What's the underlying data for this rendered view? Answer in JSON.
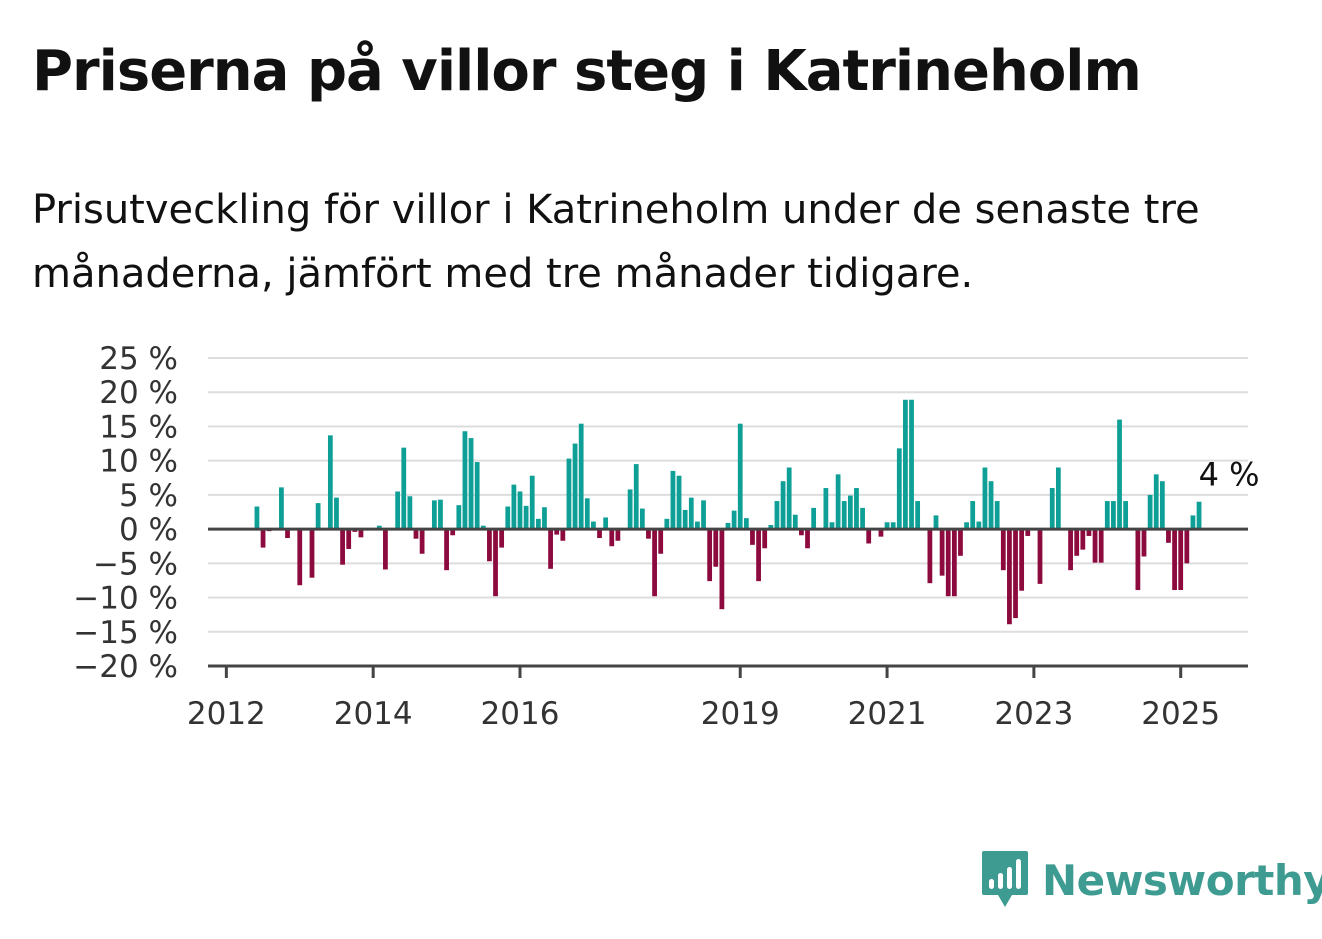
{
  "title": "Priserna på villor steg i Katrineholm",
  "subtitle": "Prisutveckling för villor i Katrineholm under de senaste tre månaderna, jämfört med tre månader tidigare.",
  "brand": {
    "name": "Newsworthy",
    "icon": "newsworthy-logo-icon",
    "color": "#3e9b91"
  },
  "colors": {
    "positive": "#0e9f96",
    "negative": "#8c0a3e",
    "grid": "#dddddd",
    "axis": "#444444"
  },
  "chart_data": {
    "type": "bar",
    "title": "",
    "xlabel": "",
    "ylabel": "",
    "ylim": [
      -20,
      25
    ],
    "y_ticks": [
      {
        "value": 25,
        "label": "25 %"
      },
      {
        "value": 20,
        "label": "20 %"
      },
      {
        "value": 15,
        "label": "15 %"
      },
      {
        "value": 10,
        "label": "10 %"
      },
      {
        "value": 5,
        "label": "5 %"
      },
      {
        "value": 0,
        "label": "0 %"
      },
      {
        "value": -5,
        "label": "−5 %"
      },
      {
        "value": -10,
        "label": "−10 %"
      },
      {
        "value": -15,
        "label": "−15 %"
      },
      {
        "value": -20,
        "label": "−20 %"
      }
    ],
    "x_domain": [
      "2011-10",
      "2025-12"
    ],
    "x_ticks": [
      "2012",
      "2014",
      "2016",
      "2019",
      "2021",
      "2023",
      "2025"
    ],
    "grid": true,
    "annotation": {
      "text": "4 %",
      "x": "2025-04"
    },
    "series": [
      {
        "x": [
          "2012-06",
          "2012-07",
          "2012-08",
          "2012-09",
          "2012-10",
          "2012-11",
          "2012-12",
          "2013-01",
          "2013-02",
          "2013-03",
          "2013-04",
          "2013-05",
          "2013-06",
          "2013-07",
          "2013-08",
          "2013-09",
          "2013-10",
          "2013-11",
          "2013-12",
          "2014-01",
          "2014-02",
          "2014-03",
          "2014-04",
          "2014-05",
          "2014-06",
          "2014-07",
          "2014-08",
          "2014-09",
          "2014-10",
          "2014-11",
          "2014-12",
          "2015-01",
          "2015-02",
          "2015-03",
          "2015-04",
          "2015-05",
          "2015-06",
          "2015-07",
          "2015-08",
          "2015-09",
          "2015-10",
          "2015-11",
          "2015-12",
          "2016-01",
          "2016-02",
          "2016-03",
          "2016-04",
          "2016-05",
          "2016-06",
          "2016-07",
          "2016-08",
          "2016-09",
          "2016-10",
          "2016-11",
          "2016-12",
          "2017-01",
          "2017-02",
          "2017-03",
          "2017-04",
          "2017-05",
          "2017-06",
          "2017-07",
          "2017-08",
          "2017-09",
          "2017-10",
          "2017-11",
          "2017-12",
          "2018-01",
          "2018-02",
          "2018-03",
          "2018-04",
          "2018-05",
          "2018-06",
          "2018-07",
          "2018-08",
          "2018-09",
          "2018-10",
          "2018-11",
          "2018-12",
          "2019-01",
          "2019-02",
          "2019-03",
          "2019-04",
          "2019-05",
          "2019-06",
          "2019-07",
          "2019-08",
          "2019-09",
          "2019-10",
          "2019-11",
          "2019-12",
          "2020-01",
          "2020-02",
          "2020-03",
          "2020-04",
          "2020-05",
          "2020-06",
          "2020-07",
          "2020-08",
          "2020-09",
          "2020-10",
          "2020-11",
          "2020-12",
          "2021-01",
          "2021-02",
          "2021-03",
          "2021-04",
          "2021-05",
          "2021-06",
          "2021-07",
          "2021-08",
          "2021-09",
          "2021-10",
          "2021-11",
          "2021-12",
          "2022-01",
          "2022-02",
          "2022-03",
          "2022-04",
          "2022-05",
          "2022-06",
          "2022-07",
          "2022-08",
          "2022-09",
          "2022-10",
          "2022-11",
          "2022-12",
          "2023-01",
          "2023-02",
          "2023-03",
          "2023-04",
          "2023-05",
          "2023-06",
          "2023-07",
          "2023-08",
          "2023-09",
          "2023-10",
          "2023-11",
          "2023-12",
          "2024-01",
          "2024-02",
          "2024-03",
          "2024-04",
          "2024-05",
          "2024-06",
          "2024-07",
          "2024-08",
          "2024-09",
          "2024-10",
          "2024-11",
          "2024-12",
          "2025-01",
          "2025-02",
          "2025-03",
          "2025-04"
        ],
        "values": [
          3.3,
          -2.7,
          -0.3,
          -0.2,
          6.1,
          -1.3,
          -0.1,
          -8.2,
          -0.2,
          -7.1,
          3.8,
          -0.2,
          13.7,
          4.6,
          -5.2,
          -2.9,
          -0.4,
          -1.2,
          -0.1,
          0,
          0.5,
          -5.9,
          -0.2,
          5.5,
          11.9,
          4.8,
          -1.4,
          -3.6,
          -0.1,
          4.2,
          4.3,
          -6.0,
          -0.9,
          3.5,
          14.3,
          13.3,
          9.8,
          0.5,
          -4.7,
          -9.8,
          -2.7,
          3.3,
          6.5,
          5.5,
          3.4,
          7.8,
          1.5,
          3.2,
          -5.8,
          -0.8,
          -1.7,
          10.3,
          12.5,
          15.4,
          4.5,
          1.1,
          -1.3,
          1.7,
          -2.5,
          -1.7,
          -0.1,
          5.8,
          9.5,
          3.0,
          -1.4,
          -9.8,
          -3.6,
          1.5,
          8.5,
          7.8,
          2.8,
          4.6,
          1.1,
          4.2,
          -7.6,
          -5.5,
          -11.7,
          0.9,
          2.7,
          15.4,
          1.6,
          -2.3,
          -7.6,
          -2.8,
          0.6,
          4.1,
          7.0,
          9.0,
          2.1,
          -0.9,
          -2.8,
          3.1,
          -0.1,
          6.0,
          1.0,
          8.0,
          4.1,
          4.9,
          6.0,
          3.1,
          -2.1,
          -0.1,
          -1.1,
          1.0,
          1.0,
          11.8,
          18.9,
          18.9,
          4.1,
          0,
          -7.9,
          2.0,
          -6.8,
          -9.8,
          -9.8,
          -3.9,
          1.0,
          4.1,
          1.1,
          9.0,
          7.0,
          4.1,
          -6.0,
          -13.9,
          -13.0,
          -9.0,
          -1.0,
          0,
          -8.0,
          0,
          6.0,
          9.0,
          0,
          -6.0,
          -3.9,
          -3.0,
          -1.0,
          -4.9,
          -4.9,
          4.1,
          4.1,
          16.0,
          4.1,
          0,
          -8.9,
          -4.0,
          5.0,
          8.0,
          7.0,
          -2.0,
          -8.9,
          -8.9,
          -5.0,
          2.0,
          4.0
        ]
      }
    ]
  }
}
